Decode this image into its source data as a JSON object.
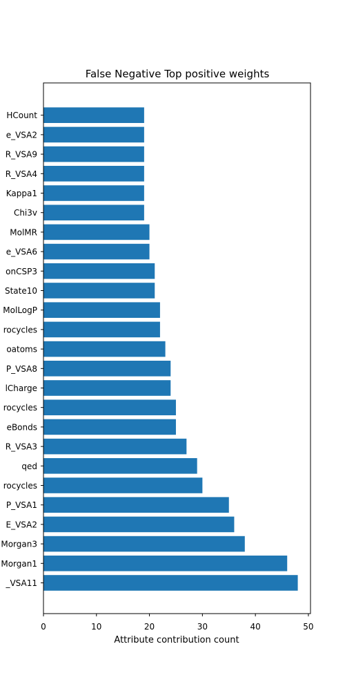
{
  "chart_data": {
    "type": "bar",
    "orientation": "horizontal",
    "title": "False Negative Top positive weights",
    "xlabel": "Attribute contribution count",
    "ylabel": "",
    "xlim": [
      0,
      50.4
    ],
    "xticks": [
      0,
      10,
      20,
      30,
      40,
      50
    ],
    "bar_color": "#1f77b4",
    "grid": false,
    "categories": [
      "_VSA11",
      "Morgan1",
      "Morgan3",
      "E_VSA2",
      "P_VSA1",
      "rocycles",
      "qed",
      "R_VSA3",
      "eBonds",
      "rocycles",
      "lCharge",
      "P_VSA8",
      "oatoms",
      "rocycles",
      "MolLogP",
      "State10",
      "onCSP3",
      "e_VSA6",
      "MolMR",
      "Chi3v",
      "Kappa1",
      "R_VSA4",
      "R_VSA9",
      "e_VSA2",
      "HCount"
    ],
    "values": [
      48,
      46,
      38,
      36,
      35,
      30,
      29,
      27,
      25,
      25,
      24,
      24,
      23,
      22,
      22,
      21,
      21,
      20,
      20,
      19,
      19,
      19,
      19,
      19,
      19
    ]
  }
}
